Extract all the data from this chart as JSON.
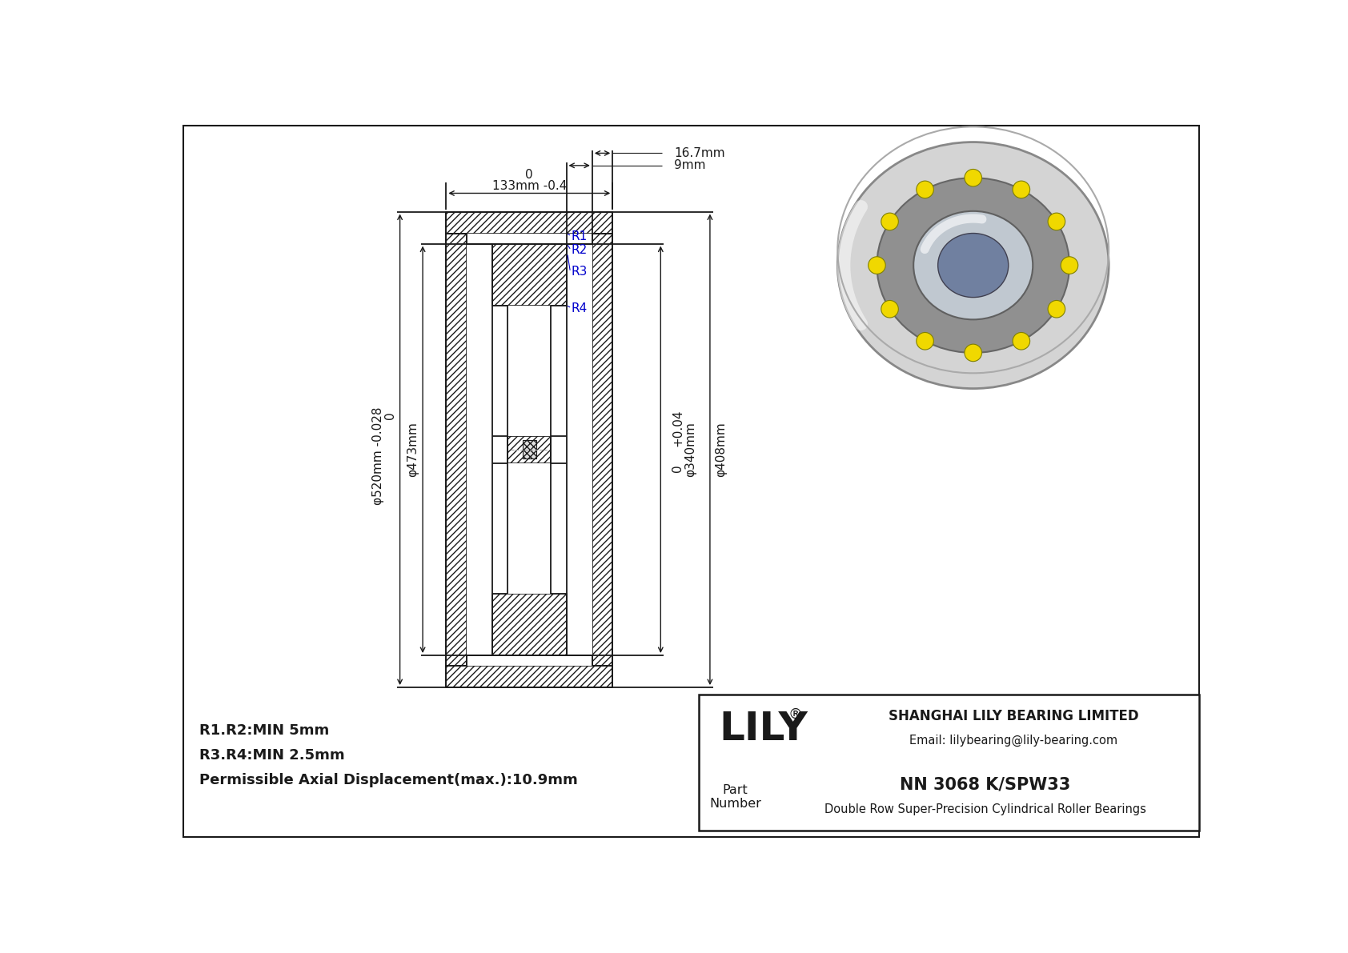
{
  "bg_color": "#ffffff",
  "lc": "#1a1a1a",
  "bc": "#0000cc",
  "title": "NN 3068 K/SPW33",
  "subtitle": "Double Row Super-Precision Cylindrical Roller Bearings",
  "company": "SHANGHAI LILY BEARING LIMITED",
  "email": "Email: lilybearing@lily-bearing.com",
  "reg": "®",
  "dim_top_zero": "0",
  "dim_top": "133mm -0.4",
  "dim_16": "16.7mm",
  "dim_9": "9mm",
  "dim_520_zero": "0",
  "dim_520": "φ520mm -0.028",
  "dim_473": "φ473mm",
  "dim_340_plus": "+0.04",
  "dim_340_zero": "0",
  "dim_340": "φ340mm",
  "dim_408": "φ408mm",
  "R1": "R1",
  "R2": "R2",
  "R3": "R3",
  "R4": "R4",
  "note1": "R1.R2:MIN 5mm",
  "note2": "R3.R4:MIN 2.5mm",
  "note3": "Permissible Axial Displacement(max.):10.9mm",
  "fig_w": 16.84,
  "fig_h": 11.91
}
